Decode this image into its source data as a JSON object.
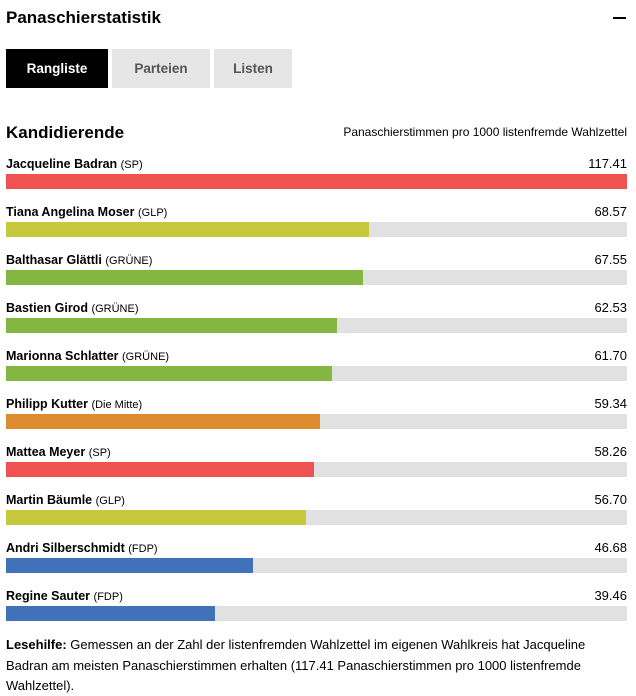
{
  "header": {
    "title": "Panaschierstatistik",
    "collapse_icon": "minus-icon"
  },
  "tabs": [
    {
      "label": "Rangliste",
      "active": true
    },
    {
      "label": "Parteien",
      "active": false
    },
    {
      "label": "Listen",
      "active": false
    }
  ],
  "section": {
    "title": "Kandidierende",
    "unit_label": "Panaschierstimmen pro 1000 listenfremde Wahlzettel"
  },
  "colors": {
    "SP": "#f05252",
    "GLP": "#c8c83c",
    "GRÜNE": "#84b741",
    "Die Mitte": "#de8a2e",
    "FDP": "#3f72b8",
    "track": "#e1e1e1"
  },
  "chart_data": {
    "type": "bar",
    "orientation": "horizontal",
    "title": "Kandidierende",
    "unit": "Panaschierstimmen pro 1000 listenfremde Wahlzettel",
    "xlim": [
      0,
      117.41
    ],
    "rows": [
      {
        "name": "Jacqueline Badran",
        "party": "(SP)",
        "party_key": "SP",
        "value": 117.41,
        "value_label": "117.41"
      },
      {
        "name": "Tiana Angelina Moser",
        "party": "(GLP)",
        "party_key": "GLP",
        "value": 68.57,
        "value_label": "68.57"
      },
      {
        "name": "Balthasar Glättli",
        "party": "(GRÜNE)",
        "party_key": "GRÜNE",
        "value": 67.55,
        "value_label": "67.55"
      },
      {
        "name": "Bastien Girod",
        "party": "(GRÜNE)",
        "party_key": "GRÜNE",
        "value": 62.53,
        "value_label": "62.53"
      },
      {
        "name": "Marionna Schlatter",
        "party": "(GRÜNE)",
        "party_key": "GRÜNE",
        "value": 61.7,
        "value_label": "61.70"
      },
      {
        "name": "Philipp Kutter",
        "party": "(Die Mitte)",
        "party_key": "Die Mitte",
        "value": 59.34,
        "value_label": "59.34"
      },
      {
        "name": "Mattea Meyer",
        "party": "(SP)",
        "party_key": "SP",
        "value": 58.26,
        "value_label": "58.26"
      },
      {
        "name": "Martin Bäumle",
        "party": "(GLP)",
        "party_key": "GLP",
        "value": 56.7,
        "value_label": "56.70"
      },
      {
        "name": "Andri Silberschmidt",
        "party": "(FDP)",
        "party_key": "FDP",
        "value": 46.68,
        "value_label": "46.68"
      },
      {
        "name": "Regine Sauter",
        "party": "(FDP)",
        "party_key": "FDP",
        "value": 39.46,
        "value_label": "39.46"
      }
    ]
  },
  "note": {
    "lead": "Lesehilfe:",
    "text": " Gemessen an der Zahl der listenfremden Wahlzettel im eigenen Wahlkreis hat Jacqueline Badran am meisten Panaschierstimmen erhalten (117.41 Panaschierstimmen pro 1000 listenfremde Wahlzettel)."
  }
}
